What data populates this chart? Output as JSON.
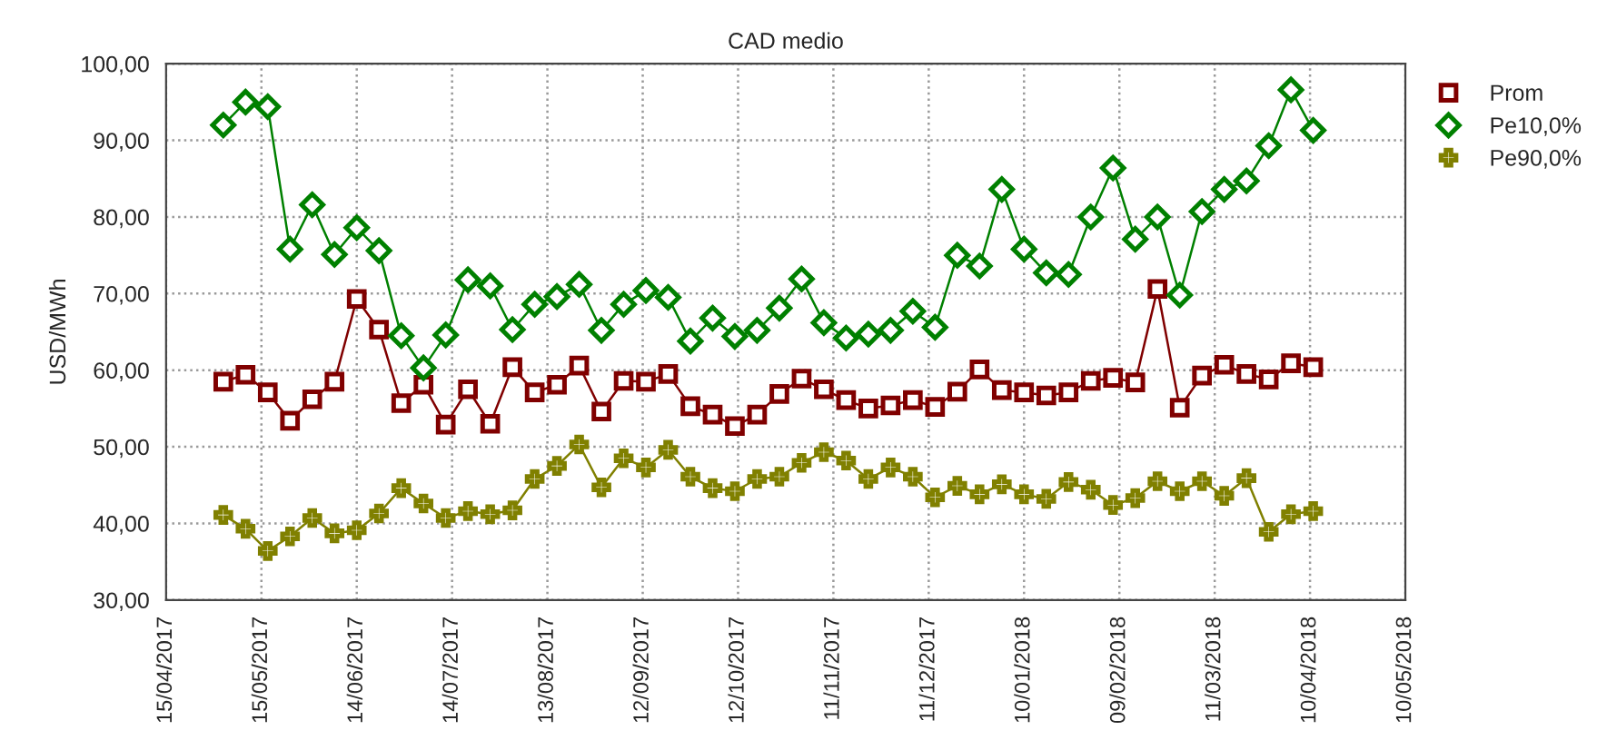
{
  "chart_data": {
    "type": "line",
    "title": "CAD medio",
    "ylabel": "USD/MWh",
    "x": [
      "2017-05-03",
      "2017-05-10",
      "2017-05-17",
      "2017-05-24",
      "2017-05-31",
      "2017-06-07",
      "2017-06-14",
      "2017-06-21",
      "2017-06-28",
      "2017-07-05",
      "2017-07-12",
      "2017-07-19",
      "2017-07-26",
      "2017-08-02",
      "2017-08-09",
      "2017-08-16",
      "2017-08-23",
      "2017-08-30",
      "2017-09-06",
      "2017-09-13",
      "2017-09-20",
      "2017-09-27",
      "2017-10-04",
      "2017-10-11",
      "2017-10-18",
      "2017-10-25",
      "2017-11-01",
      "2017-11-08",
      "2017-11-15",
      "2017-11-22",
      "2017-11-29",
      "2017-12-06",
      "2017-12-13",
      "2017-12-20",
      "2017-12-27",
      "2018-01-03",
      "2018-01-10",
      "2018-01-17",
      "2018-01-24",
      "2018-01-31",
      "2018-02-07",
      "2018-02-14",
      "2018-02-21",
      "2018-02-28",
      "2018-03-07",
      "2018-03-14",
      "2018-03-21",
      "2018-03-28",
      "2018-04-04",
      "2018-04-11"
    ],
    "series": [
      {
        "name": "Prom",
        "color": "#800000",
        "marker": "square",
        "values": [
          58.5,
          59.4,
          57.1,
          53.4,
          56.2,
          58.5,
          69.3,
          65.3,
          55.7,
          58.1,
          52.9,
          57.5,
          53.0,
          60.4,
          57.1,
          58.1,
          60.6,
          54.6,
          58.6,
          58.5,
          59.5,
          55.3,
          54.2,
          52.7,
          54.2,
          56.9,
          58.9,
          57.5,
          56.1,
          55.0,
          55.4,
          56.1,
          55.2,
          57.2,
          60.1,
          57.4,
          57.1,
          56.7,
          57.1,
          58.6,
          59.0,
          58.4,
          70.6,
          55.1,
          59.3,
          60.7,
          59.5,
          58.8,
          60.9,
          60.4
        ]
      },
      {
        "name": "Pe10,0%",
        "color": "#008000",
        "marker": "diamond",
        "values": [
          92.0,
          95.0,
          94.4,
          75.8,
          81.6,
          75.1,
          78.6,
          75.6,
          64.5,
          60.3,
          64.6,
          71.8,
          71.0,
          65.3,
          68.6,
          69.6,
          71.2,
          65.2,
          68.6,
          70.4,
          69.5,
          63.8,
          66.8,
          64.4,
          65.2,
          68.1,
          71.9,
          66.2,
          64.2,
          64.7,
          65.2,
          67.7,
          65.6,
          75.0,
          73.6,
          83.6,
          75.8,
          72.7,
          72.5,
          80.0,
          86.4,
          77.1,
          80.0,
          69.8,
          80.7,
          83.6,
          84.7,
          89.3,
          96.6,
          91.3
        ]
      },
      {
        "name": "Pe90,0%",
        "color": "#808000",
        "marker": "cross",
        "values": [
          41.1,
          39.3,
          36.4,
          38.3,
          40.7,
          38.7,
          39.1,
          41.3,
          44.6,
          42.6,
          40.7,
          41.6,
          41.2,
          41.7,
          45.8,
          47.5,
          50.3,
          44.7,
          48.5,
          47.3,
          49.6,
          46.1,
          44.6,
          44.2,
          45.8,
          46.1,
          47.9,
          49.3,
          48.2,
          45.8,
          47.3,
          46.1,
          43.4,
          44.9,
          43.8,
          45.1,
          43.8,
          43.2,
          45.4,
          44.4,
          42.4,
          43.3,
          45.5,
          44.2,
          45.5,
          43.6,
          45.9,
          38.9,
          41.2,
          41.6
        ]
      }
    ],
    "xlim": [
      "2017-04-15",
      "2018-05-10"
    ],
    "xticks": [
      {
        "value": "2017-04-15",
        "label": "15/04/2017"
      },
      {
        "value": "2017-05-15",
        "label": "15/05/2017"
      },
      {
        "value": "2017-06-14",
        "label": "14/06/2017"
      },
      {
        "value": "2017-07-14",
        "label": "14/07/2017"
      },
      {
        "value": "2017-08-13",
        "label": "13/08/2017"
      },
      {
        "value": "2017-09-12",
        "label": "12/09/2017"
      },
      {
        "value": "2017-10-12",
        "label": "12/10/2017"
      },
      {
        "value": "2017-11-11",
        "label": "11/11/2017"
      },
      {
        "value": "2017-12-11",
        "label": "11/12/2017"
      },
      {
        "value": "2018-01-10",
        "label": "10/01/2018"
      },
      {
        "value": "2018-02-09",
        "label": "09/02/2018"
      },
      {
        "value": "2018-03-11",
        "label": "11/03/2018"
      },
      {
        "value": "2018-04-10",
        "label": "10/04/2018"
      },
      {
        "value": "2018-05-10",
        "label": "10/05/2018"
      }
    ],
    "ylim": [
      30,
      100
    ],
    "yticks": [
      {
        "value": 30,
        "label": "30,00"
      },
      {
        "value": 40,
        "label": "40,00"
      },
      {
        "value": 50,
        "label": "50,00"
      },
      {
        "value": 60,
        "label": "60,00"
      },
      {
        "value": 70,
        "label": "70,00"
      },
      {
        "value": 80,
        "label": "80,00"
      },
      {
        "value": 90,
        "label": "90,00"
      },
      {
        "value": 100,
        "label": "100,00"
      }
    ],
    "grid": true,
    "legend": "top right",
    "line_style": "solid"
  }
}
